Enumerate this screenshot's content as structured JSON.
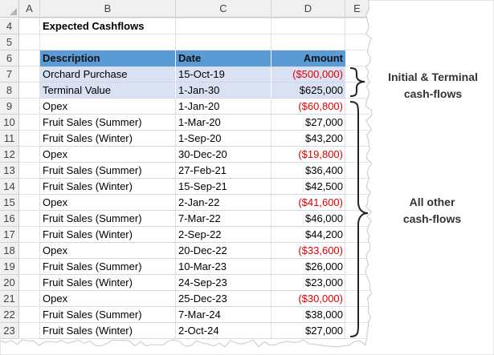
{
  "columns": [
    "A",
    "B",
    "C",
    "D",
    "E"
  ],
  "row_numbers": [
    "4",
    "5",
    "6",
    "7",
    "8",
    "9",
    "10",
    "11",
    "12",
    "13",
    "14",
    "15",
    "16",
    "17",
    "18",
    "19",
    "20",
    "21",
    "22",
    "23"
  ],
  "sheet_title": "Expected Cashflows",
  "table": {
    "headers": [
      "Description",
      "Date",
      "Amount"
    ],
    "rows": [
      [
        "Orchard Purchase",
        "15-Oct-19",
        "($500,000)"
      ],
      [
        "Terminal Value",
        "1-Jan-30",
        "$625,000"
      ],
      [
        "Opex",
        "1-Jan-20",
        "($60,800)"
      ],
      [
        "Fruit Sales (Summer)",
        "1-Mar-20",
        "$27,000"
      ],
      [
        "Fruit Sales (Winter)",
        "1-Sep-20",
        "$43,200"
      ],
      [
        "Opex",
        "30-Dec-20",
        "($19,800)"
      ],
      [
        "Fruit Sales (Summer)",
        "27-Feb-21",
        "$36,400"
      ],
      [
        "Fruit Sales (Winter)",
        "15-Sep-21",
        "$42,500"
      ],
      [
        "Opex",
        "2-Jan-22",
        "($41,600)"
      ],
      [
        "Fruit Sales (Summer)",
        "7-Mar-22",
        "$46,000"
      ],
      [
        "Fruit Sales (Winter)",
        "2-Sep-22",
        "$44,200"
      ],
      [
        "Opex",
        "20-Dec-22",
        "($33,600)"
      ],
      [
        "Fruit Sales (Summer)",
        "10-Mar-23",
        "$26,000"
      ],
      [
        "Fruit Sales (Winter)",
        "24-Sep-23",
        "$23,000"
      ],
      [
        "Opex",
        "25-Dec-23",
        "($30,000)"
      ],
      [
        "Fruit Sales (Summer)",
        "7-Mar-24",
        "$38,000"
      ],
      [
        "Fruit Sales (Winter)",
        "2-Oct-24",
        "$27,000"
      ]
    ]
  },
  "annotations": {
    "initial_terminal": [
      "Initial & Terminal",
      "cash-flows"
    ],
    "all_other": [
      "All other",
      "cash-flows"
    ]
  },
  "colors": {
    "header_fill": "#5b9bd5",
    "highlight_fill": "#d9e1f2",
    "negative_text": "#e00000"
  }
}
